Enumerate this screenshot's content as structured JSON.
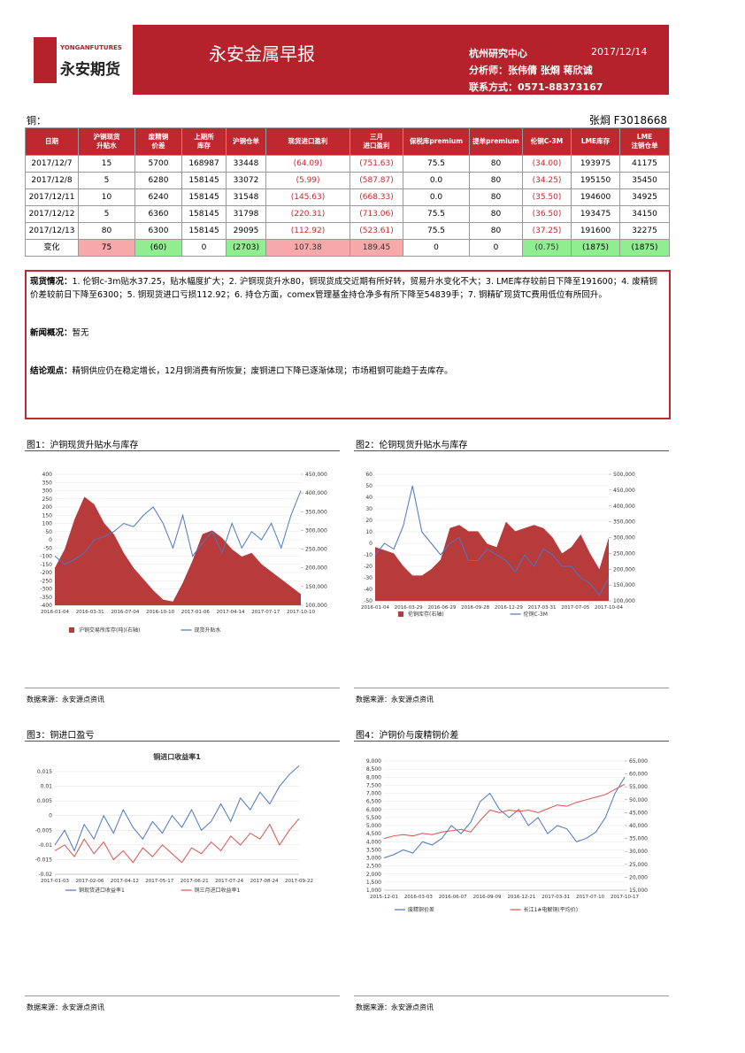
{
  "header": {
    "logo": {
      "en": "YONGANFUTURES",
      "cn": "永安期货"
    },
    "title": "永安金属早报",
    "center": "杭州研究中心",
    "date": "2017/12/14",
    "analysts": "分析师：张伟倩 张烱 蒋欣诚",
    "contact": "联系方式：0571-88373167"
  },
  "section": {
    "label": "铜：",
    "author": "张烱 F3018668"
  },
  "table": {
    "columns": [
      "日期",
      "沪铜现货\n升贴水",
      "废精铜\n价差",
      "上期所\n库存",
      "沪铜仓单",
      "现货进口盈利",
      "三月\n进口盈利",
      "保税库premium",
      "提单premium",
      "伦铜C-3M",
      "LME库存",
      "LME\n注销仓单"
    ],
    "header_color": "#c0282f",
    "red_columns": [
      5,
      6,
      9
    ],
    "rows": [
      [
        "2017/12/7",
        "15",
        "5700",
        "168987",
        "33448",
        "(64.09)",
        "(751.63)",
        "75.5",
        "80",
        "(34.00)",
        "193975",
        "41175"
      ],
      [
        "2017/12/8",
        "5",
        "6280",
        "158145",
        "33072",
        "(5.99)",
        "(587.87)",
        "0.0",
        "80",
        "(34.25)",
        "195150",
        "35450"
      ],
      [
        "2017/12/11",
        "10",
        "6240",
        "158145",
        "31548",
        "(145.63)",
        "(668.33)",
        "0.0",
        "80",
        "(35.50)",
        "194600",
        "34925"
      ],
      [
        "2017/12/12",
        "5",
        "6360",
        "158145",
        "31798",
        "(220.31)",
        "(713.06)",
        "75.5",
        "80",
        "(36.50)",
        "193475",
        "34150"
      ],
      [
        "2017/12/13",
        "80",
        "6300",
        "158145",
        "29095",
        "(112.92)",
        "(523.61)",
        "75.5",
        "80",
        "(37.25)",
        "191600",
        "32275"
      ]
    ],
    "change_row": [
      "变化",
      "75",
      "(60)",
      "0",
      "(2703)",
      "107.38",
      "189.45",
      "0",
      "0",
      "(0.75)",
      "(1875)",
      "(1875)"
    ],
    "change_colors": [
      null,
      "#f7a8a8",
      "#90ee90",
      null,
      "#90ee90",
      "#f7a8a8",
      "#f7a8a8",
      null,
      null,
      "#90ee90",
      "#90ee90",
      "#90ee90"
    ]
  },
  "commentary": [
    {
      "label": "现货情况：",
      "text": "1. 伦铜c-3m贴水37.25，贴水幅度扩大；2. 沪铜现货升水80，铜现货成交近期有所好转，贸易升水变化不大；3. LME库存较前日下降至191600；4. 废精铜价差较前日下降至6300；5. 铜现货进口亏损112.92；6. 持仓方面，comex管理基金持仓净多有所下降至54839手；7. 铜精矿现货TC费用低位有所回升。"
    },
    {
      "label": "新闻概况：",
      "text": "暂无"
    },
    {
      "label": "结论观点：",
      "text": "精铜供应仍在稳定增长，12月铜消费有所恢复；废铜进口下降已逐渐体现；市场粗铜可能趋于去库存。"
    }
  ],
  "figures": [
    {
      "caption": "图1：沪铜现货升贴水与库存",
      "source": "数据来源：永安源点资讯",
      "chart_data": {
        "type": "line",
        "x_labels": [
          "2016-01-04",
          "2016-03-31",
          "2016-07-04",
          "2016-10-10",
          "2017-01-06",
          "2017-04-14",
          "2017-07-17",
          "2017-10-10"
        ],
        "ylim": [
          -400,
          400
        ],
        "yticks": [
          -400,
          -350,
          -300,
          -250,
          -200,
          -150,
          -100,
          -50,
          0,
          50,
          100,
          150,
          200,
          250,
          300,
          350,
          400
        ],
        "y2lim": [
          100000,
          450000
        ],
        "y2ticks": [
          {
            "value": 100000,
            "label": "100,000"
          },
          {
            "value": 150000,
            "label": "150,000"
          },
          {
            "value": 200000,
            "label": "200,000"
          },
          {
            "value": 250000,
            "label": "250,000"
          },
          {
            "value": 300000,
            "label": "300,000"
          },
          {
            "value": 350000,
            "label": "350,000"
          },
          {
            "value": 400000,
            "label": "400,000"
          },
          {
            "value": 450000,
            "label": "450,000"
          }
        ],
        "series": [
          {
            "name": "沪铜交易所库存(吨)(右轴)",
            "color": "#b83b3b",
            "kind": "area",
            "axis": "y2",
            "values": [
              200000,
              250000,
              330000,
              390000,
              370000,
              320000,
              290000,
              240000,
              200000,
              170000,
              140000,
              115000,
              110000,
              160000,
              220000,
              290000,
              300000,
              280000,
              250000,
              230000,
              240000,
              210000,
              190000,
              170000,
              150000,
              130000
            ]
          },
          {
            "name": "现货升贴水",
            "color": "#4a76c4",
            "kind": "line",
            "values": [
              -100,
              -150,
              -120,
              -80,
              0,
              20,
              50,
              100,
              80,
              150,
              200,
              100,
              -50,
              150,
              -100,
              -20,
              50,
              -80,
              100,
              -50,
              50,
              0,
              100,
              -50,
              150,
              300
            ]
          }
        ]
      }
    },
    {
      "caption": "图2：伦铜现货升贴水与库存",
      "source": "数据来源：永安源点资讯",
      "chart_data": {
        "type": "line",
        "x_labels": [
          "2016-01-04",
          "2016-03-29",
          "2016-06-29",
          "2016-09-28",
          "2016-12-29",
          "2017-03-31",
          "2017-07-05",
          "2017-10-04"
        ],
        "ylim": [
          -50,
          60
        ],
        "yticks": [
          -50,
          -40,
          -30,
          -20,
          -10,
          0,
          10,
          20,
          30,
          40,
          50,
          60
        ],
        "y2lim": [
          100000,
          500000
        ],
        "y2ticks": [
          {
            "value": 100000,
            "label": "100,000"
          },
          {
            "value": 150000,
            "label": "150,000"
          },
          {
            "value": 200000,
            "label": "200,000"
          },
          {
            "value": 250000,
            "label": "250,000"
          },
          {
            "value": 300000,
            "label": "300,000"
          },
          {
            "value": 350000,
            "label": "350,000"
          },
          {
            "value": 400000,
            "label": "400,000"
          },
          {
            "value": 450000,
            "label": "450,000"
          },
          {
            "value": 500000,
            "label": "500,000"
          }
        ],
        "series": [
          {
            "name": "伦铜库存(右轴)",
            "color": "#b83b3b",
            "kind": "area",
            "axis": "y2",
            "values": [
              270000,
              260000,
              250000,
              210000,
              180000,
              180000,
              200000,
              230000,
              330000,
              340000,
              320000,
              320000,
              280000,
              270000,
              350000,
              320000,
              330000,
              340000,
              330000,
              300000,
              250000,
              270000,
              310000,
              250000,
              200000,
              300000
            ]
          },
          {
            "name": "伦铜C-3M",
            "color": "#4a76c4",
            "kind": "line",
            "values": [
              -10,
              0,
              -5,
              15,
              50,
              10,
              0,
              -10,
              0,
              5,
              -15,
              -15,
              -5,
              -10,
              -15,
              -25,
              -10,
              -20,
              -5,
              -10,
              -20,
              -20,
              -30,
              -35,
              -45,
              -30
            ]
          }
        ]
      }
    },
    {
      "caption": "图3：铜进口盈亏",
      "source": "数据来源：永安源点资讯",
      "chart_data": {
        "type": "line",
        "title": "铜进口收益率1",
        "x_labels": [
          "2017-01-03",
          "2017-02-06",
          "2017-04-12",
          "2017-05-17",
          "2017-06-21",
          "2017-07-24",
          "2017-08-24",
          "2017-09-22"
        ],
        "ylim": [
          -0.02,
          0.015
        ],
        "yticks": [
          -0.02,
          -0.015,
          -0.01,
          -0.005,
          0,
          0.005,
          0.01,
          0.015
        ],
        "series": [
          {
            "name": "铜现货进口收益率1",
            "color": "#4a76c4",
            "kind": "line",
            "values": [
              -0.01,
              -0.005,
              -0.012,
              -0.003,
              -0.008,
              0,
              -0.006,
              0.002,
              -0.004,
              -0.008,
              -0.002,
              -0.006,
              0,
              -0.004,
              0.002,
              -0.005,
              -0.002,
              0.004,
              -0.002,
              0.006,
              0.002,
              0.008,
              0.004,
              0.01,
              0.014,
              0.017
            ]
          },
          {
            "name": "铜三月进口收益率1",
            "color": "#d9534f",
            "kind": "line",
            "values": [
              -0.012,
              -0.01,
              -0.014,
              -0.008,
              -0.013,
              -0.009,
              -0.015,
              -0.012,
              -0.016,
              -0.011,
              -0.014,
              -0.01,
              -0.013,
              -0.016,
              -0.011,
              -0.013,
              -0.009,
              -0.012,
              -0.007,
              -0.01,
              -0.006,
              -0.008,
              -0.003,
              -0.01,
              -0.005,
              -0.001
            ]
          }
        ]
      }
    },
    {
      "caption": "图4：沪铜价与废精铜价差",
      "source": "数据来源：永安源点资讯",
      "chart_data": {
        "type": "line",
        "x_labels": [
          "2015-12-01",
          "2016-03-03",
          "2016-06-07",
          "2016-09-09",
          "2016-12-21",
          "2017-03-31",
          "2017-07-10",
          "2017-10-17"
        ],
        "ylim": [
          1000,
          9000
        ],
        "yticks": [
          {
            "value": 1000,
            "label": "1,000"
          },
          {
            "value": 1500,
            "label": "1,500"
          },
          {
            "value": 2000,
            "label": "2,000"
          },
          {
            "value": 2500,
            "label": "2,500"
          },
          {
            "value": 3000,
            "label": "3,000"
          },
          {
            "value": 3500,
            "label": "3,500"
          },
          {
            "value": 4000,
            "label": "4,000"
          },
          {
            "value": 4500,
            "label": "4,500"
          },
          {
            "value": 5000,
            "label": "5,000"
          },
          {
            "value": 5500,
            "label": "5,500"
          },
          {
            "value": 6000,
            "label": "6,000"
          },
          {
            "value": 6500,
            "label": "6,500"
          },
          {
            "value": 7000,
            "label": "7,000"
          },
          {
            "value": 7500,
            "label": "7,500"
          },
          {
            "value": 8000,
            "label": "8,000"
          },
          {
            "value": 8500,
            "label": "8,500"
          },
          {
            "value": 9000,
            "label": "9,000"
          }
        ],
        "y2lim": [
          15000,
          65000
        ],
        "y2ticks": [
          {
            "value": 15000,
            "label": "15,000"
          },
          {
            "value": 20000,
            "label": "20,000"
          },
          {
            "value": 25000,
            "label": "25,000"
          },
          {
            "value": 30000,
            "label": "30,000"
          },
          {
            "value": 35000,
            "label": "35,000"
          },
          {
            "value": 40000,
            "label": "40,000"
          },
          {
            "value": 45000,
            "label": "45,000"
          },
          {
            "value": 50000,
            "label": "50,000"
          },
          {
            "value": 55000,
            "label": "55,000"
          },
          {
            "value": 60000,
            "label": "60,000"
          },
          {
            "value": 65000,
            "label": "65,000"
          }
        ],
        "series": [
          {
            "name": "废精铜价差",
            "color": "#4a76c4",
            "kind": "line",
            "values": [
              3000,
              3200,
              3500,
              3300,
              4000,
              3800,
              4200,
              5000,
              4500,
              5200,
              6500,
              7000,
              6000,
              5500,
              6000,
              5000,
              5500,
              4500,
              5000,
              4800,
              4000,
              4200,
              4600,
              5500,
              7000,
              8000
            ]
          },
          {
            "name": "长江1#电解铜(平均价)",
            "color": "#d9534f",
            "kind": "line",
            "axis": "y2",
            "values": [
              35000,
              36000,
              36500,
              36000,
              37000,
              36500,
              37500,
              38000,
              38500,
              37500,
              42000,
              46000,
              45000,
              46000,
              45500,
              46000,
              45000,
              46500,
              48000,
              47500,
              49000,
              50000,
              51000,
              52000,
              54000,
              56000
            ]
          }
        ]
      }
    }
  ]
}
